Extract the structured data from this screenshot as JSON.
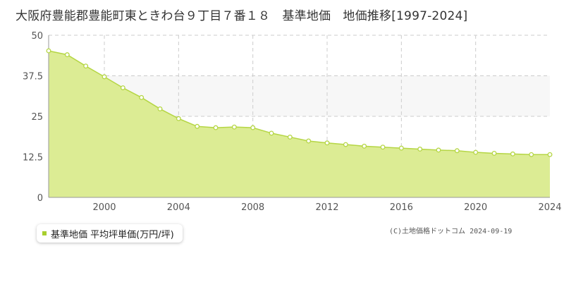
{
  "title": "大阪府豊能郡豊能町東ときわ台９丁目７番１８　基準地価　地価推移[1997-2024]",
  "legend": {
    "label": "基準地価 平均坪単価(万円/坪)"
  },
  "copyright": "(C)土地価格ドットコム 2024-09-19",
  "colors": {
    "area_fill": "#dcec94",
    "line": "#b5d644",
    "marker_fill": "#ffffff",
    "band": "#f7f7f7",
    "grid": "#cccccc"
  },
  "chart_data": {
    "type": "area",
    "title": "大阪府豊能郡豊能町東ときわ台９丁目７番１８　基準地価　地価推移[1997-2024]",
    "xlabel": "",
    "ylabel": "",
    "ylim": [
      0,
      50
    ],
    "xlim": [
      1997,
      2024
    ],
    "y_ticks": [
      "0",
      "12.5",
      "25",
      "37.5",
      "50"
    ],
    "x_ticks": [
      "2000",
      "2004",
      "2008",
      "2012",
      "2016",
      "2020",
      "2024"
    ],
    "grid": true,
    "legend_position": "bottom-left",
    "series": [
      {
        "name": "基準地価 平均坪単価(万円/坪)",
        "x": [
          1997,
          1998,
          1999,
          2000,
          2001,
          2002,
          2003,
          2004,
          2005,
          2006,
          2007,
          2008,
          2009,
          2010,
          2011,
          2012,
          2013,
          2014,
          2015,
          2016,
          2017,
          2018,
          2019,
          2020,
          2021,
          2022,
          2023,
          2024
        ],
        "y": [
          45.2,
          44.0,
          40.5,
          37.2,
          33.8,
          30.8,
          27.3,
          24.3,
          21.9,
          21.5,
          21.7,
          21.5,
          19.8,
          18.6,
          17.4,
          16.8,
          16.3,
          15.8,
          15.5,
          15.2,
          14.9,
          14.6,
          14.4,
          13.9,
          13.6,
          13.4,
          13.2,
          13.2
        ]
      }
    ]
  }
}
